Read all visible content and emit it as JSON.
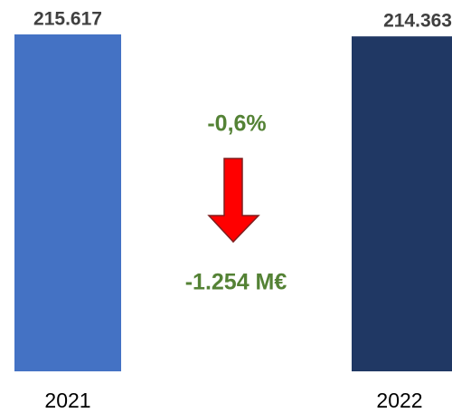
{
  "chart_data": {
    "type": "bar",
    "categories": [
      "2021",
      "2022"
    ],
    "values": [
      215617,
      214363
    ],
    "value_labels": [
      "215.617",
      "214.363"
    ],
    "colors": [
      "#4472c4",
      "#203864"
    ],
    "annotations": [
      "-0,6%",
      "-1.254 M€"
    ]
  }
}
